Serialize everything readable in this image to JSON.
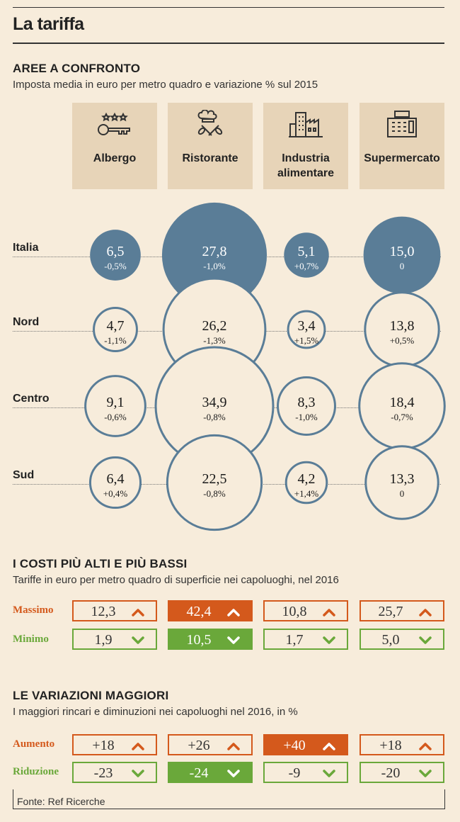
{
  "title": "La tariffa",
  "section1": {
    "heading": "AREE A CONFRONTO",
    "subtitle": "Imposta media in euro per metro quadro e variazione % sul 2015"
  },
  "categories": [
    {
      "label": "Albergo",
      "icon": "hotel-key-icon"
    },
    {
      "label": "Ristorante",
      "icon": "chef-icon"
    },
    {
      "label": "Industria alimentare",
      "icon": "factory-icon"
    },
    {
      "label": "Supermercato",
      "icon": "cash-register-icon"
    }
  ],
  "section2": {
    "heading": "I COSTI PIÙ ALTI E PIÙ BASSI",
    "subtitle": "Tariffe in euro per metro quadro di superficie nei capoluoghi, nel 2016",
    "row_labels": {
      "max": "Massimo",
      "min": "Minimo"
    }
  },
  "section3": {
    "heading": "LE VARIAZIONI MAGGIORI",
    "subtitle": "I maggiori rincari e diminuzioni nei capoluoghi nel 2016, in %",
    "row_labels": {
      "up": "Aumento",
      "down": "Riduzione"
    }
  },
  "source": "Fonte: Ref Ricerche",
  "colors": {
    "filled": "#5a7d97",
    "outline": "#5a7d97",
    "orange": "#d4591c",
    "green": "#6aa83a",
    "bg": "#f7ecdb"
  },
  "chart_data": [
    {
      "type": "bubble",
      "title": "AREE A CONFRONTO",
      "categories": [
        "Albergo",
        "Ristorante",
        "Industria alimentare",
        "Supermercato"
      ],
      "series": [
        {
          "name": "Italia",
          "values": [
            "6,5",
            "27,8",
            "5,1",
            "15,0"
          ],
          "changes": [
            "-0,5%",
            "-1,0%",
            "+0,7%",
            "0"
          ],
          "filled": true
        },
        {
          "name": "Nord",
          "values": [
            "4,7",
            "26,2",
            "3,4",
            "13,8"
          ],
          "changes": [
            "-1,1%",
            "-1,3%",
            "+1,5%",
            "+0,5%"
          ],
          "filled": false
        },
        {
          "name": "Centro",
          "values": [
            "9,1",
            "34,9",
            "8,3",
            "18,4"
          ],
          "changes": [
            "-0,6%",
            "-0,8%",
            "-1,0%",
            "-0,7%"
          ],
          "filled": false
        },
        {
          "name": "Sud",
          "values": [
            "6,4",
            "22,5",
            "4,2",
            "13,3"
          ],
          "changes": [
            "+0,4%",
            "-0,8%",
            "+1,4%",
            "0"
          ],
          "filled": false
        }
      ]
    },
    {
      "type": "table",
      "title": "I COSTI PIÙ ALTI E PIÙ BASSI",
      "categories": [
        "Albergo",
        "Ristorante",
        "Industria alimentare",
        "Supermercato"
      ],
      "rows": [
        {
          "name": "Massimo",
          "values": [
            "12,3",
            "42,4",
            "10,8",
            "25,7"
          ],
          "highlight": 1
        },
        {
          "name": "Minimo",
          "values": [
            "1,9",
            "10,5",
            "1,7",
            "5,0"
          ],
          "highlight": 1
        }
      ]
    },
    {
      "type": "table",
      "title": "LE VARIAZIONI MAGGIORI",
      "categories": [
        "Albergo",
        "Ristorante",
        "Industria alimentare",
        "Supermercato"
      ],
      "rows": [
        {
          "name": "Aumento",
          "values": [
            "+18",
            "+26",
            "+40",
            "+18"
          ],
          "highlight": 2
        },
        {
          "name": "Riduzione",
          "values": [
            "-23",
            "-24",
            "-9",
            "-20"
          ],
          "highlight": 1
        }
      ]
    }
  ]
}
